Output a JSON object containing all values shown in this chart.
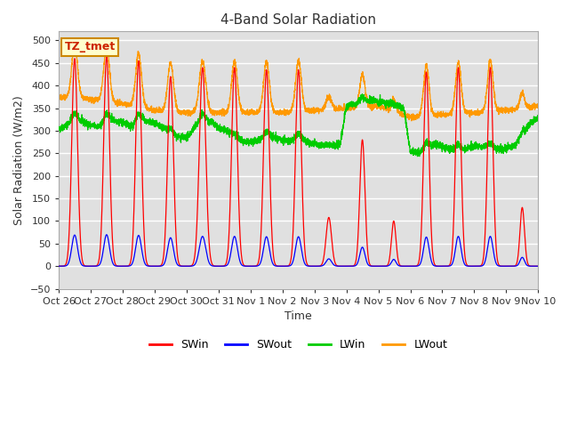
{
  "title": "4-Band Solar Radiation",
  "xlabel": "Time",
  "ylabel": "Solar Radiation (W/m2)",
  "ylim": [
    -50,
    520
  ],
  "background_color": "#e0e0e0",
  "grid_color": "#ffffff",
  "fig_bg": "#ffffff",
  "label_box_text": "TZ_tmet",
  "label_box_bg": "#ffffcc",
  "label_box_border": "#cc8800",
  "label_box_text_color": "#cc2200",
  "legend_entries": [
    "SWin",
    "SWout",
    "LWin",
    "LWout"
  ],
  "line_colors": [
    "#ff0000",
    "#0000ff",
    "#00cc00",
    "#ff9900"
  ],
  "tick_labels": [
    "Oct 26",
    "Oct 27",
    "Oct 28",
    "Oct 29",
    "Oct 30",
    "Oct 31",
    "Nov 1",
    "Nov 2",
    "Nov 3",
    "Nov 4",
    "Nov 5",
    "Nov 6",
    "Nov 7",
    "Nov 8",
    "Nov 9",
    "Nov 10"
  ],
  "tick_positions": [
    0,
    1,
    2,
    3,
    4,
    5,
    6,
    7,
    8,
    9,
    10,
    11,
    12,
    13,
    14,
    15
  ],
  "yticks": [
    -50,
    0,
    50,
    100,
    150,
    200,
    250,
    300,
    350,
    400,
    450,
    500
  ]
}
